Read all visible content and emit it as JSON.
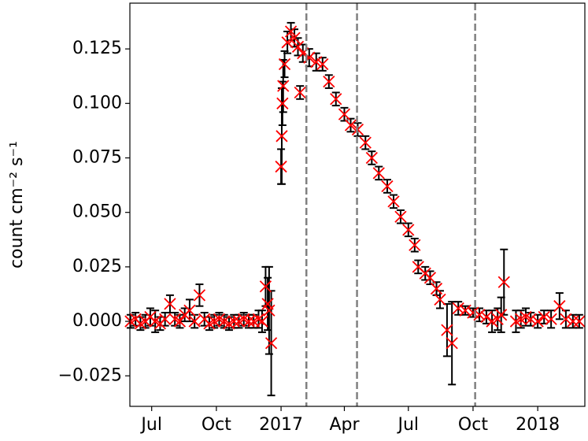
{
  "chart_data": {
    "type": "scatter",
    "ylabel": "count cm⁻² s⁻¹",
    "xlim": [
      "2016-05-31",
      "2018-03-09"
    ],
    "ylim": [
      -0.039,
      0.146
    ],
    "xticks": [
      {
        "value": "2016-07-01",
        "label": "Jul"
      },
      {
        "value": "2016-10-01",
        "label": "Oct"
      },
      {
        "value": "2017-01-01",
        "label": "2017"
      },
      {
        "value": "2017-04-01",
        "label": "Apr"
      },
      {
        "value": "2017-07-01",
        "label": "Jul"
      },
      {
        "value": "2017-10-01",
        "label": "Oct"
      },
      {
        "value": "2018-01-01",
        "label": "2018"
      }
    ],
    "yticks": [
      {
        "value": -0.025,
        "label": "−0.025"
      },
      {
        "value": 0,
        "label": "0.000"
      },
      {
        "value": 0.025,
        "label": "0.025"
      },
      {
        "value": 0.05,
        "label": "0.050"
      },
      {
        "value": 0.075,
        "label": "0.075"
      },
      {
        "value": 0.1,
        "label": "0.100"
      },
      {
        "value": 0.125,
        "label": "0.125"
      }
    ],
    "vlines": [
      "2017-02-06",
      "2017-04-19",
      "2017-10-04"
    ],
    "vline_color": "#808080",
    "color": "#ff0000",
    "error_color": "#000000",
    "x": [
      "2016-06-01",
      "2016-06-08",
      "2016-06-15",
      "2016-06-22",
      "2016-06-29",
      "2016-07-06",
      "2016-07-13",
      "2016-07-20",
      "2016-07-27",
      "2016-08-03",
      "2016-08-10",
      "2016-08-17",
      "2016-08-24",
      "2016-08-31",
      "2016-09-07",
      "2016-09-14",
      "2016-09-21",
      "2016-09-28",
      "2016-10-05",
      "2016-10-12",
      "2016-10-19",
      "2016-10-26",
      "2016-11-02",
      "2016-11-09",
      "2016-11-16",
      "2016-11-23",
      "2016-11-30",
      "2016-12-05",
      "2016-12-10",
      "2016-12-13",
      "2016-12-15",
      "2016-12-18",
      "2017-01-01",
      "2017-01-02",
      "2017-01-03",
      "2017-01-04",
      "2017-01-06",
      "2017-01-10",
      "2017-01-15",
      "2017-01-20",
      "2017-01-25",
      "2017-01-28",
      "2017-02-01",
      "2017-02-10",
      "2017-02-20",
      "2017-03-01",
      "2017-03-10",
      "2017-03-20",
      "2017-04-01",
      "2017-04-10",
      "2017-04-20",
      "2017-05-01",
      "2017-05-10",
      "2017-05-20",
      "2017-06-01",
      "2017-06-10",
      "2017-06-20",
      "2017-07-01",
      "2017-07-10",
      "2017-07-15",
      "2017-07-25",
      "2017-08-01",
      "2017-08-10",
      "2017-08-15",
      "2017-08-25",
      "2017-09-01",
      "2017-09-10",
      "2017-09-20",
      "2017-10-01",
      "2017-10-10",
      "2017-10-20",
      "2017-10-28",
      "2017-11-05",
      "2017-11-10",
      "2017-11-14",
      "2017-12-01",
      "2017-12-08",
      "2017-12-15",
      "2017-12-22",
      "2018-01-01",
      "2018-01-10",
      "2018-01-20",
      "2018-02-01",
      "2018-02-10",
      "2018-02-20",
      "2018-03-01"
    ],
    "values": [
      0.0,
      0.001,
      -0.001,
      0.0,
      0.002,
      0.0,
      -0.001,
      0.001,
      0.008,
      0.001,
      0.0,
      0.003,
      0.005,
      0.0,
      0.012,
      0.001,
      -0.001,
      0.0,
      0.001,
      0.0,
      -0.001,
      0.0,
      0.0,
      0.001,
      0.0,
      0.0,
      0.001,
      0.0,
      0.016,
      0.008,
      0.005,
      -0.01,
      0.071,
      0.085,
      0.1,
      0.108,
      0.118,
      0.128,
      0.133,
      0.13,
      0.126,
      0.105,
      0.123,
      0.121,
      0.119,
      0.118,
      0.11,
      0.102,
      0.095,
      0.09,
      0.088,
      0.082,
      0.075,
      0.068,
      0.062,
      0.055,
      0.048,
      0.042,
      0.035,
      0.025,
      0.022,
      0.02,
      0.015,
      0.01,
      -0.004,
      -0.01,
      0.006,
      0.005,
      0.004,
      0.003,
      0.002,
      0.0,
      0.001,
      0.003,
      0.018,
      0.0,
      0.001,
      0.002,
      0.001,
      0.0,
      0.002,
      0.001,
      0.007,
      0.001,
      0.0,
      0.0
    ],
    "errors": [
      0.003,
      0.003,
      0.003,
      0.003,
      0.004,
      0.005,
      0.003,
      0.003,
      0.004,
      0.003,
      0.003,
      0.003,
      0.005,
      0.003,
      0.005,
      0.003,
      0.003,
      0.003,
      0.003,
      0.003,
      0.003,
      0.003,
      0.003,
      0.003,
      0.003,
      0.003,
      0.004,
      0.005,
      0.009,
      0.012,
      0.02,
      0.024,
      0.008,
      0.022,
      0.01,
      0.012,
      0.006,
      0.005,
      0.004,
      0.004,
      0.004,
      0.003,
      0.004,
      0.004,
      0.004,
      0.003,
      0.003,
      0.003,
      0.003,
      0.003,
      0.003,
      0.003,
      0.003,
      0.003,
      0.003,
      0.003,
      0.003,
      0.003,
      0.003,
      0.003,
      0.003,
      0.003,
      0.003,
      0.004,
      0.012,
      0.019,
      0.003,
      0.002,
      0.002,
      0.003,
      0.003,
      0.005,
      0.005,
      0.008,
      0.015,
      0.005,
      0.004,
      0.004,
      0.003,
      0.003,
      0.003,
      0.004,
      0.006,
      0.004,
      0.003,
      0.003
    ]
  }
}
